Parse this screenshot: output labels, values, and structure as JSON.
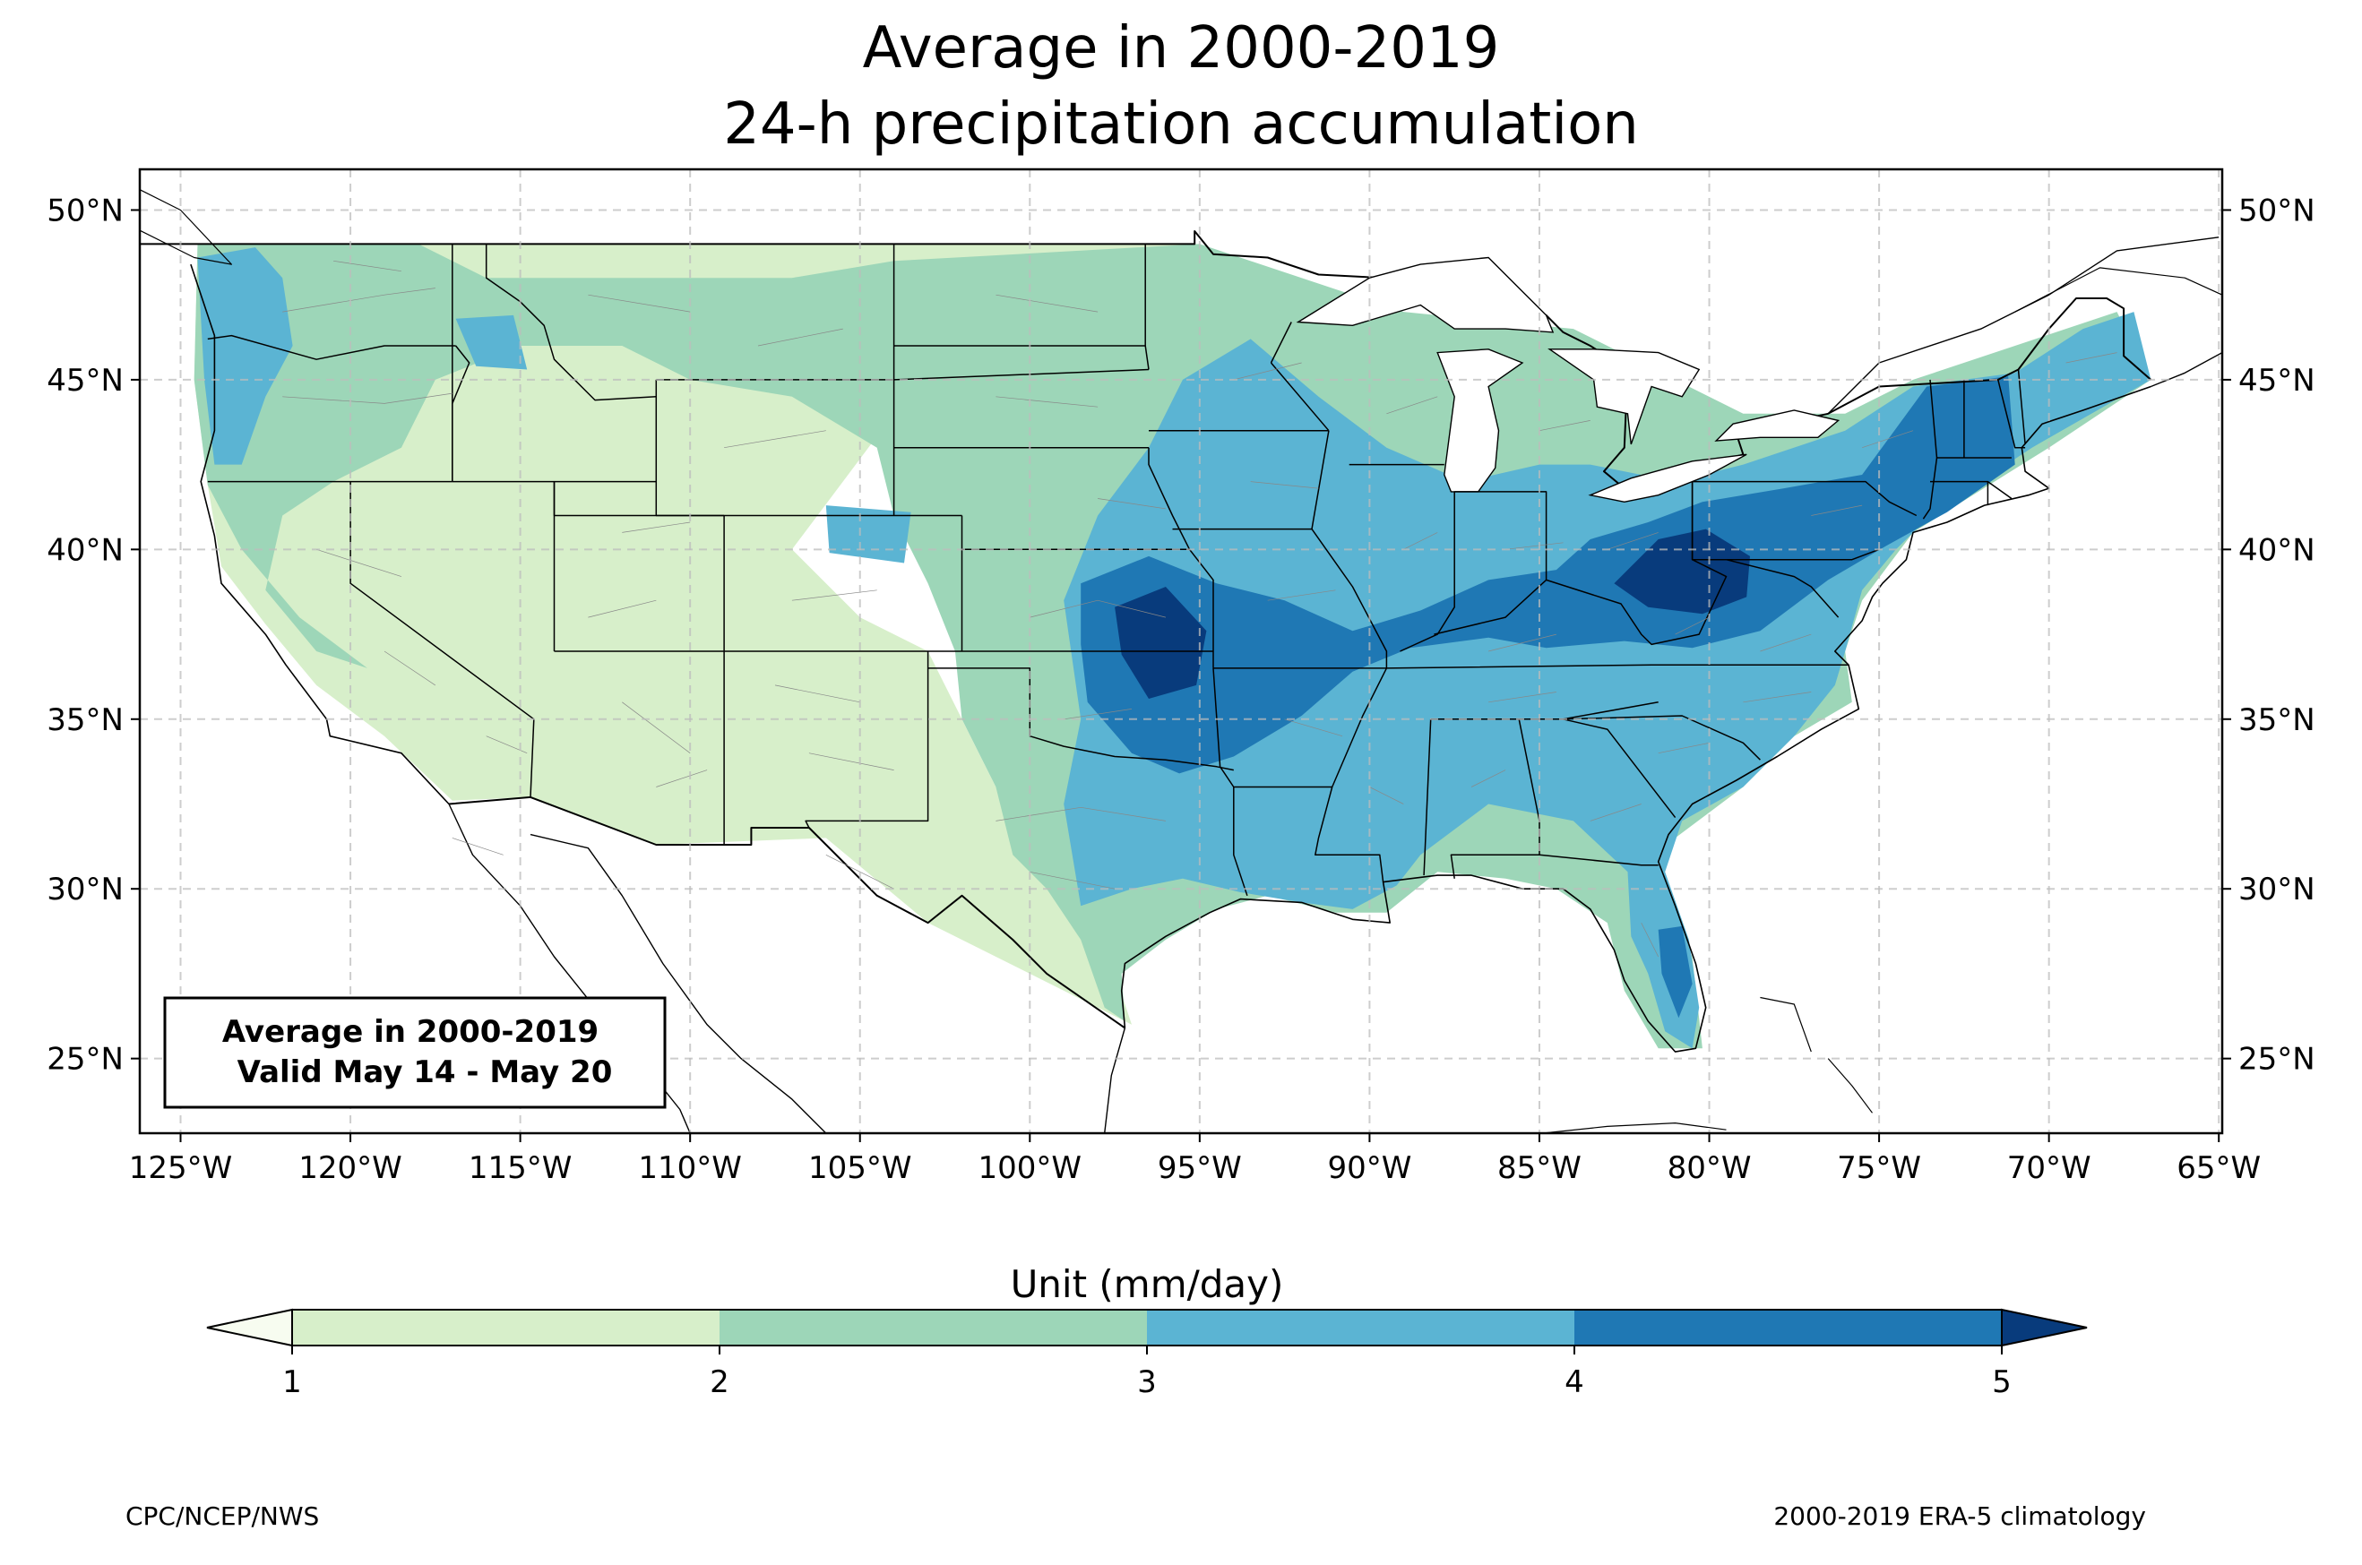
{
  "title": {
    "line1": "Average in 2000-2019",
    "line2": "24-h precipitation accumulation"
  },
  "map": {
    "lon_range": [
      -126.2,
      -64.9
    ],
    "lat_range": [
      22.8,
      51.2
    ],
    "lon_ticks": [
      -125,
      -120,
      -115,
      -110,
      -105,
      -100,
      -95,
      -90,
      -85,
      -80,
      -75,
      -70,
      -65
    ],
    "lon_tick_labels": [
      "125°W",
      "120°W",
      "115°W",
      "110°W",
      "105°W",
      "100°W",
      "95°W",
      "90°W",
      "85°W",
      "80°W",
      "75°W",
      "70°W",
      "65°W"
    ],
    "lat_ticks": [
      25,
      30,
      35,
      40,
      45,
      50
    ],
    "lat_tick_labels": [
      "25°N",
      "30°N",
      "35°N",
      "40°N",
      "45°N",
      "50°N"
    ],
    "gridlines": true,
    "overlays": [
      {
        "level": 1,
        "label": "1–2 mm/day",
        "polys": [
          [
            [
              -124.5,
              49
            ],
            [
              -95,
              49
            ],
            [
              -95,
              47
            ],
            [
              -100,
              46
            ],
            [
              -104,
              44
            ],
            [
              -107,
              40
            ],
            [
              -105,
              38
            ],
            [
              -103,
              37
            ],
            [
              -101,
              33
            ],
            [
              -98,
              29
            ],
            [
              -97,
              26
            ],
            [
              -99,
              27
            ],
            [
              -103,
              29
            ],
            [
              -106,
              31.5
            ],
            [
              -111,
              31.3
            ],
            [
              -114.7,
              32.7
            ],
            [
              -117,
              32.6
            ],
            [
              -119,
              34.5
            ],
            [
              -121,
              36
            ],
            [
              -122.5,
              37.8
            ],
            [
              -123.8,
              39.5
            ],
            [
              -124.2,
              41.9
            ],
            [
              -124.6,
              45
            ],
            [
              -124.5,
              49
            ]
          ]
        ]
      },
      {
        "level": 2,
        "label": "2–3 mm/day",
        "polys": [
          [
            [
              -124.5,
              49
            ],
            [
              -118,
              49
            ],
            [
              -116,
              48
            ],
            [
              -114,
              48
            ],
            [
              -111.5,
              48
            ],
            [
              -107,
              48
            ],
            [
              -104,
              48.5
            ],
            [
              -95,
              49
            ],
            [
              -89,
              47
            ],
            [
              -84,
              46.5
            ],
            [
              -82,
              45.5
            ],
            [
              -79,
              44
            ],
            [
              -76,
              44
            ],
            [
              -74,
              45
            ],
            [
              -68,
              47
            ],
            [
              -67,
              45
            ],
            [
              -70,
              43
            ],
            [
              -74,
              40.5
            ],
            [
              -75.5,
              38.5
            ],
            [
              -76,
              37
            ],
            [
              -75.8,
              35.5
            ],
            [
              -77.5,
              34.5
            ],
            [
              -79,
              33
            ],
            [
              -81,
              31.5
            ],
            [
              -81.5,
              30
            ],
            [
              -80.5,
              28
            ],
            [
              -80.2,
              25.3
            ],
            [
              -81.5,
              25.3
            ],
            [
              -82.5,
              27
            ],
            [
              -83,
              29
            ],
            [
              -84.5,
              30
            ],
            [
              -86,
              30.3
            ],
            [
              -88,
              30.5
            ],
            [
              -89.5,
              29.3
            ],
            [
              -91,
              29.3
            ],
            [
              -93,
              29.8
            ],
            [
              -94.5,
              29.4
            ],
            [
              -96,
              28.5
            ],
            [
              -97.3,
              27.5
            ],
            [
              -97.2,
              26.1
            ],
            [
              -97.8,
              26.5
            ],
            [
              -98.5,
              28.5
            ],
            [
              -99.5,
              30
            ],
            [
              -100.5,
              31
            ],
            [
              -101,
              33
            ],
            [
              -102,
              35
            ],
            [
              -102.2,
              37
            ],
            [
              -103,
              39
            ],
            [
              -104,
              41
            ],
            [
              -104.5,
              43
            ],
            [
              -107,
              44.5
            ],
            [
              -110,
              45
            ],
            [
              -112,
              46
            ],
            [
              -115,
              46
            ],
            [
              -117.5,
              45
            ],
            [
              -118.5,
              43
            ],
            [
              -120.5,
              42
            ],
            [
              -122,
              41
            ],
            [
              -122.5,
              38.8
            ],
            [
              -121,
              37
            ],
            [
              -119.5,
              36.5
            ],
            [
              -121.5,
              38
            ],
            [
              -123.2,
              40
            ],
            [
              -124.2,
              41.9
            ],
            [
              -124.6,
              45
            ],
            [
              -124.5,
              49
            ]
          ]
        ]
      },
      {
        "level": 3,
        "label": "3–4 mm/day",
        "polys": [
          [
            [
              -98.5,
              29.5
            ],
            [
              -99,
              32.5
            ],
            [
              -98.5,
              35
            ],
            [
              -99,
              38.5
            ],
            [
              -98,
              41
            ],
            [
              -96.5,
              43
            ],
            [
              -95.5,
              45
            ],
            [
              -93.5,
              46.2
            ],
            [
              -91.5,
              44.5
            ],
            [
              -89.5,
              43
            ],
            [
              -87.2,
              42
            ],
            [
              -85,
              42.5
            ],
            [
              -83.5,
              42.5
            ],
            [
              -81,
              42
            ],
            [
              -79,
              42.5
            ],
            [
              -76,
              43.5
            ],
            [
              -74,
              44.8
            ],
            [
              -71,
              45.2
            ],
            [
              -69,
              46.5
            ],
            [
              -67.5,
              47
            ],
            [
              -67,
              45
            ],
            [
              -70.5,
              43
            ],
            [
              -73.5,
              41
            ],
            [
              -74.5,
              40
            ],
            [
              -75.5,
              38.8
            ],
            [
              -76,
              37
            ],
            [
              -76.3,
              36
            ],
            [
              -77.5,
              34.5
            ],
            [
              -79,
              33
            ],
            [
              -80.8,
              32
            ],
            [
              -81.3,
              30.5
            ],
            [
              -80.6,
              28.5
            ],
            [
              -80.3,
              26.5
            ],
            [
              -80.5,
              25.3
            ],
            [
              -81.3,
              25.8
            ],
            [
              -81.8,
              27.5
            ],
            [
              -82.3,
              28.6
            ],
            [
              -82.4,
              30.5
            ],
            [
              -84,
              32
            ],
            [
              -86.5,
              32.5
            ],
            [
              -88.5,
              31
            ],
            [
              -89.2,
              30.1
            ],
            [
              -90.5,
              29.4
            ],
            [
              -92,
              29.6
            ],
            [
              -93.8,
              29.9
            ],
            [
              -95.5,
              30.3
            ],
            [
              -97,
              30
            ],
            [
              -98.5,
              29.5
            ]
          ],
          [
            [
              -124.5,
              48.6
            ],
            [
              -122.8,
              48.9
            ],
            [
              -122,
              48
            ],
            [
              -121.7,
              46
            ],
            [
              -122.5,
              44.5
            ],
            [
              -123.2,
              42.5
            ],
            [
              -124,
              42.5
            ],
            [
              -124.3,
              45
            ],
            [
              -124.5,
              48.6
            ]
          ],
          [
            [
              -116.9,
              46.8
            ],
            [
              -115.2,
              46.9
            ],
            [
              -114.8,
              45.3
            ],
            [
              -116.3,
              45.4
            ],
            [
              -116.9,
              46.8
            ]
          ],
          [
            [
              -106,
              41.3
            ],
            [
              -103.5,
              41.1
            ],
            [
              -103.7,
              39.6
            ],
            [
              -105.9,
              39.9
            ],
            [
              -106,
              41.3
            ]
          ]
        ]
      },
      {
        "level": 4,
        "label": "4–5 mm/day",
        "polys": [
          [
            [
              -98.5,
              39
            ],
            [
              -96.5,
              39.8
            ],
            [
              -94.5,
              39
            ],
            [
              -92.5,
              38.5
            ],
            [
              -90.5,
              37.6
            ],
            [
              -88.5,
              38.2
            ],
            [
              -86.5,
              39.1
            ],
            [
              -84.5,
              39.4
            ],
            [
              -83.5,
              40.3
            ],
            [
              -81.8,
              40.8
            ],
            [
              -80.2,
              41.4
            ],
            [
              -77.8,
              41.8
            ],
            [
              -75.5,
              42.2
            ],
            [
              -73.6,
              44.8
            ],
            [
              -71.2,
              45.1
            ],
            [
              -71,
              42.5
            ],
            [
              -73,
              41.1
            ],
            [
              -74.8,
              40.1
            ],
            [
              -76.5,
              39.1
            ],
            [
              -78.5,
              37.6
            ],
            [
              -80.5,
              37.1
            ],
            [
              -82.5,
              37.3
            ],
            [
              -84.8,
              37.1
            ],
            [
              -86.5,
              37.4
            ],
            [
              -88.8,
              37.1
            ],
            [
              -90.5,
              36.4
            ],
            [
              -92,
              35.1
            ],
            [
              -94,
              33.9
            ],
            [
              -95.6,
              33.4
            ],
            [
              -97,
              34
            ],
            [
              -98.3,
              35.5
            ],
            [
              -98.5,
              37.2
            ],
            [
              -98.5,
              39
            ]
          ],
          [
            [
              -81.5,
              28.8
            ],
            [
              -80.8,
              28.9
            ],
            [
              -80.5,
              27.2
            ],
            [
              -80.9,
              26.2
            ],
            [
              -81.4,
              27.5
            ],
            [
              -81.5,
              28.8
            ]
          ]
        ]
      },
      {
        "level": 5,
        "label": ">5 mm/day",
        "polys": [
          [
            [
              -97.5,
              38.3
            ],
            [
              -96,
              38.9
            ],
            [
              -94.8,
              37.6
            ],
            [
              -95.1,
              36
            ],
            [
              -96.5,
              35.6
            ],
            [
              -97.3,
              36.9
            ],
            [
              -97.5,
              38.3
            ]
          ],
          [
            [
              -82.8,
              39
            ],
            [
              -81.5,
              40.3
            ],
            [
              -80.1,
              40.6
            ],
            [
              -78.8,
              39.8
            ],
            [
              -78.9,
              38.6
            ],
            [
              -80.2,
              38.1
            ],
            [
              -81.8,
              38.3
            ],
            [
              -82.8,
              39
            ]
          ]
        ]
      }
    ],
    "colors": {
      "below_1": "#f7fcf0",
      "1-2": "#d7efca",
      "2-3": "#9dd6b8",
      "3-4": "#5bb4d3",
      "4-5": "#1f78b4",
      "above_5": "#083b7c"
    },
    "annotation": {
      "line1": "Average in 2000-2019",
      "line2": "Valid May 14 - May 20"
    }
  },
  "colorbar": {
    "label": "Unit (mm/day)",
    "ticks": [
      1,
      2,
      3,
      4,
      5
    ],
    "tick_labels": [
      "1",
      "2",
      "3",
      "4",
      "5"
    ],
    "colors": [
      "#f7fcf0",
      "#d7efca",
      "#9dd6b8",
      "#5bb4d3",
      "#1f78b4",
      "#083b7c"
    ],
    "extend": "both"
  },
  "footer": {
    "left": "CPC/NCEP/NWS",
    "right": "2000-2019 ERA-5 climatology"
  }
}
